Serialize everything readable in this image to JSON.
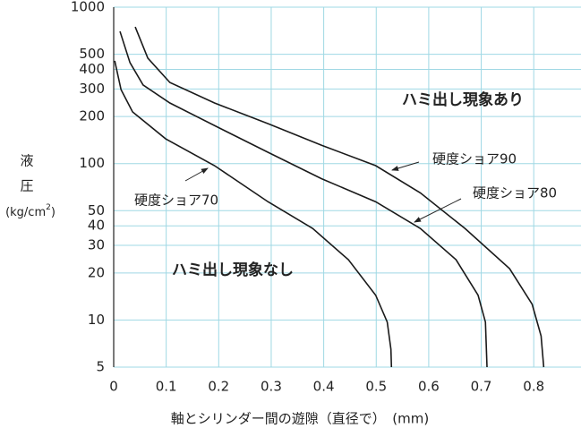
{
  "chart_data": {
    "type": "line",
    "ylabel": [
      "液",
      "圧",
      "(kg/cm",
      "2",
      ")"
    ],
    "xlabel": "軸とシリンダー間の遊隙（直径で）　(mm)",
    "annotations": [
      "ハミ出し現象あり",
      "ハミ出し現象なし"
    ],
    "yscale": "log",
    "grid": true,
    "xlim": [
      0,
      0.89
    ],
    "xticks": [
      0,
      0.1,
      0.2,
      0.3,
      0.4,
      0.5,
      0.6,
      0.7,
      0.8
    ],
    "ylim": [
      5,
      1000
    ],
    "yticks": [
      5,
      10,
      20,
      30,
      40,
      50,
      100,
      200,
      300,
      400,
      500,
      1000
    ],
    "series": [
      {
        "name": "硬度ショア70",
        "color": "#1a1a1a",
        "x": [
          0.002,
          0.014,
          0.036,
          0.099,
          0.192,
          0.294,
          0.379,
          0.447,
          0.499,
          0.521,
          0.528,
          0.529
        ],
        "values": [
          454,
          297,
          214,
          144,
          97,
          57,
          38.5,
          24.3,
          14.4,
          9.7,
          6.5,
          5
        ]
      },
      {
        "name": "硬度ショア80",
        "color": "#1a1a1a",
        "x": [
          0.012,
          0.031,
          0.056,
          0.107,
          0.201,
          0.294,
          0.396,
          0.499,
          0.584,
          0.652,
          0.694,
          0.708,
          0.711
        ],
        "values": [
          700,
          442,
          318,
          244,
          169,
          118,
          80,
          57,
          38.5,
          24.3,
          14.4,
          9.7,
          5
        ]
      },
      {
        "name": "硬度ショア90",
        "color": "#1a1a1a",
        "x": [
          0.041,
          0.065,
          0.107,
          0.192,
          0.294,
          0.396,
          0.499,
          0.584,
          0.669,
          0.754,
          0.797,
          0.814,
          0.819
        ],
        "values": [
          748,
          472,
          330,
          244,
          180,
          131,
          97,
          65,
          38.5,
          21.3,
          12.6,
          7.9,
          5
        ]
      }
    ]
  }
}
